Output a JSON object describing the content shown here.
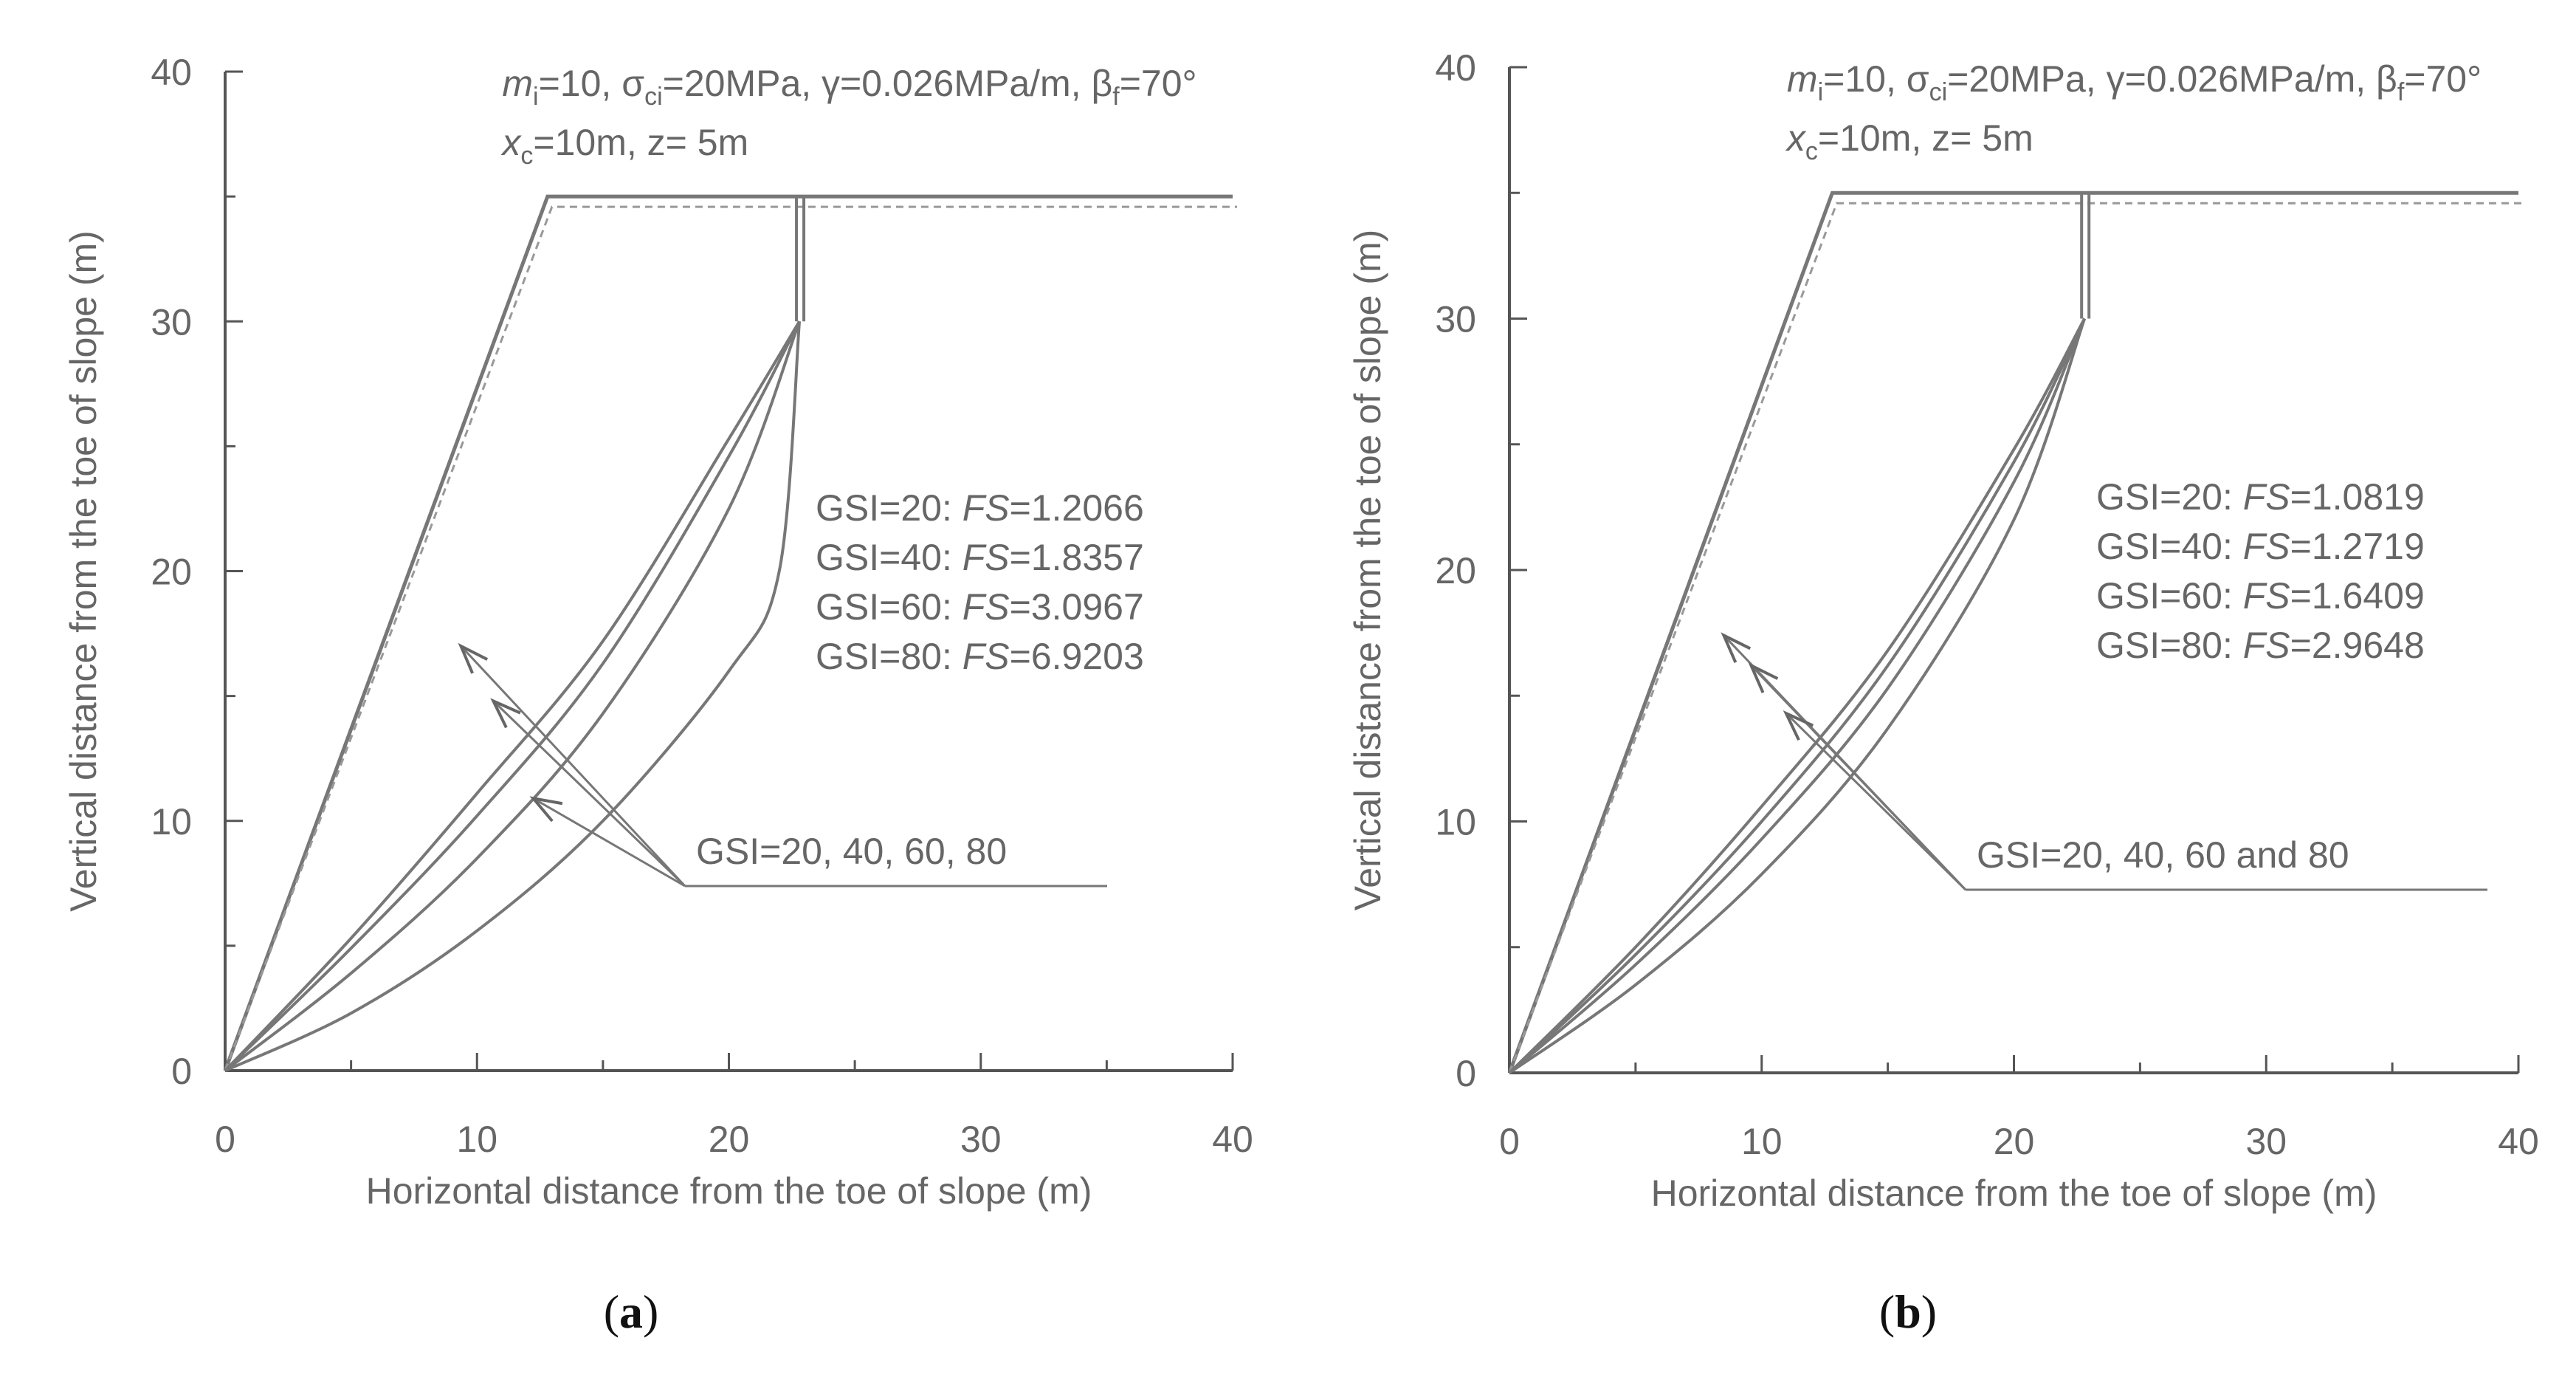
{
  "chart_data": [
    {
      "type": "line",
      "panel_label": "(a)",
      "xlabel": "Horizontal distance from the toe of slope (m)",
      "ylabel": "Vertical distance from the toe of slope (m)",
      "xlim": [
        0,
        40
      ],
      "ylim": [
        0,
        40
      ],
      "xticks": [
        "0",
        "10",
        "20",
        "30",
        "40"
      ],
      "yticks": [
        "0",
        "10",
        "20",
        "30",
        "40"
      ],
      "params_line1": {
        "m_symbol": "m",
        "m_sub": "i",
        "m_val": "=10, ",
        "sigma": "σ",
        "sigma_sub": "ci",
        "sigma_val": "=20MPa, ",
        "gamma": "γ=0.026MPa/m, ",
        "beta": "β",
        "beta_sub": "f",
        "beta_val": "=70°"
      },
      "params_line2": {
        "x_symbol": "x",
        "x_sub": "c",
        "x_val": "=10m, z= 5m"
      },
      "fs_results": [
        {
          "gsi": "GSI=20: ",
          "fs_label": "FS",
          "fs_value": "=1.2066"
        },
        {
          "gsi": "GSI=40: ",
          "fs_label": "FS",
          "fs_value": "=1.8357"
        },
        {
          "gsi": "GSI=60: ",
          "fs_label": "FS",
          "fs_value": "=3.0967"
        },
        {
          "gsi": "GSI=80: ",
          "fs_label": "FS",
          "fs_value": "=6.9203"
        }
      ],
      "curve_label": "GSI=20, 40, 60, 80",
      "slope_profile": {
        "x": [
          0,
          12.8,
          22.8,
          40
        ],
        "y": [
          0,
          35,
          35,
          35
        ]
      },
      "tension_crack": {
        "x": 22.8,
        "y_from": 35,
        "y_to": 30
      },
      "series": [
        {
          "name": "GSI=20",
          "x": [
            0,
            5,
            10,
            15,
            20,
            22.8
          ],
          "y": [
            0,
            5.3,
            11.1,
            17.2,
            25.3,
            30
          ]
        },
        {
          "name": "GSI=40",
          "x": [
            0,
            5,
            10,
            15,
            20,
            22.8
          ],
          "y": [
            0,
            4.9,
            10.2,
            16.3,
            24.6,
            30
          ]
        },
        {
          "name": "GSI=60",
          "x": [
            0,
            5,
            10,
            15,
            20,
            22.8
          ],
          "y": [
            0,
            3.9,
            8.5,
            14.3,
            22.5,
            30
          ]
        },
        {
          "name": "GSI=80",
          "x": [
            0,
            5,
            10,
            15,
            20,
            22,
            22.8
          ],
          "y": [
            0,
            2.3,
            5.6,
            10.0,
            16.0,
            20.0,
            30
          ]
        }
      ]
    },
    {
      "type": "line",
      "panel_label": "(b)",
      "xlabel": "Horizontal distance from the toe of slope (m)",
      "ylabel": "Vertical distance from the toe of slope (m)",
      "xlim": [
        0,
        40
      ],
      "ylim": [
        0,
        40
      ],
      "xticks": [
        "0",
        "10",
        "20",
        "30",
        "40"
      ],
      "yticks": [
        "0",
        "10",
        "20",
        "30",
        "40"
      ],
      "params_line1": {
        "m_symbol": "m",
        "m_sub": "i",
        "m_val": "=10, ",
        "sigma": "σ",
        "sigma_sub": "ci",
        "sigma_val": "=20MPa, ",
        "gamma": "γ=0.026MPa/m, ",
        "beta": "β",
        "beta_sub": "f",
        "beta_val": "=70°"
      },
      "params_line2": {
        "x_symbol": "x",
        "x_sub": "c",
        "x_val": "=10m, z= 5m"
      },
      "fs_results": [
        {
          "gsi": "GSI=20: ",
          "fs_label": "FS",
          "fs_value": "=1.0819"
        },
        {
          "gsi": "GSI=40: ",
          "fs_label": "FS",
          "fs_value": "=1.2719"
        },
        {
          "gsi": "GSI=60: ",
          "fs_label": "FS",
          "fs_value": "=1.6409"
        },
        {
          "gsi": "GSI=80: ",
          "fs_label": "FS",
          "fs_value": "=2.9648"
        }
      ],
      "curve_label": "GSI=20, 40, 60 and 80",
      "slope_profile": {
        "x": [
          0,
          12.8,
          22.8,
          40
        ],
        "y": [
          0,
          35,
          35,
          35
        ]
      },
      "tension_crack": {
        "x": 22.8,
        "y_from": 35,
        "y_to": 30
      },
      "series": [
        {
          "name": "GSI=20",
          "x": [
            0,
            5,
            10,
            15,
            20,
            22.8
          ],
          "y": [
            0,
            5.0,
            10.6,
            16.8,
            24.8,
            30
          ]
        },
        {
          "name": "GSI=40",
          "x": [
            0,
            5,
            10,
            15,
            20,
            22.8
          ],
          "y": [
            0,
            4.7,
            10.0,
            16.2,
            24.3,
            30
          ]
        },
        {
          "name": "GSI=60",
          "x": [
            0,
            5,
            10,
            15,
            20,
            22.8
          ],
          "y": [
            0,
            4.3,
            9.3,
            15.3,
            23.5,
            30
          ]
        },
        {
          "name": "GSI=80",
          "x": [
            0,
            5,
            10,
            15,
            20,
            22.8
          ],
          "y": [
            0,
            3.5,
            7.9,
            13.7,
            22.0,
            30
          ]
        }
      ]
    }
  ]
}
